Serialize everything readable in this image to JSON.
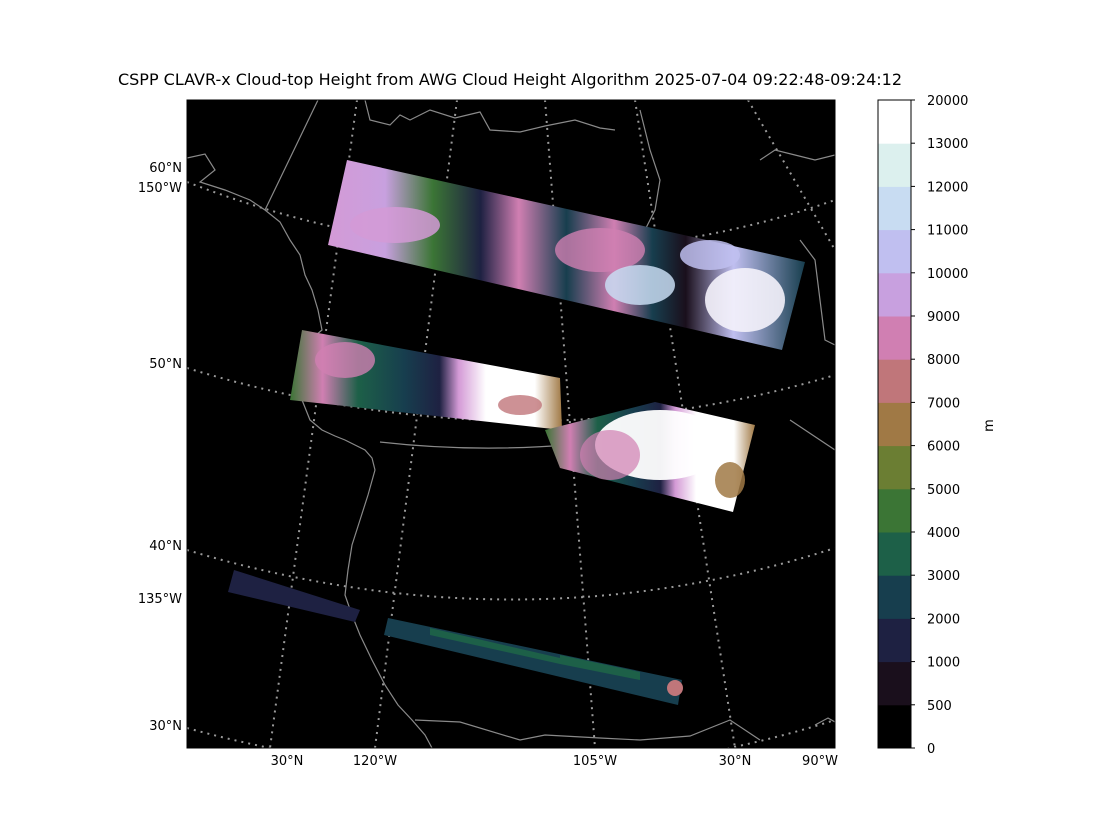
{
  "title": "CSPP CLAVR-x Cloud-top Height from AWG Cloud Height Algorithm 2025-07-04 09:22:48-09:24:12",
  "colorbar": {
    "unit": "m",
    "ticks": [
      "0",
      "500",
      "1000",
      "2000",
      "3000",
      "4000",
      "5000",
      "6000",
      "7000",
      "8000",
      "9000",
      "10000",
      "11000",
      "12000",
      "13000",
      "20000"
    ],
    "colors": [
      "#000000",
      "#1a0f1c",
      "#1e2142",
      "#173e4e",
      "#1d6048",
      "#3b7535",
      "#6b7e33",
      "#a07945",
      "#c0767a",
      "#d07fb2",
      "#c8a0df",
      "#c0bff0",
      "#c8dcf2",
      "#dcf0ee",
      "#ffffff"
    ]
  },
  "map": {
    "lat_labels": [
      "60°N",
      "50°N",
      "40°N",
      "30°N"
    ],
    "lon_labels_left": [
      "150°W",
      "135°W"
    ],
    "bottom_labels": [
      "30°N",
      "120°W",
      "105°W",
      "30°N",
      "90°W"
    ]
  }
}
